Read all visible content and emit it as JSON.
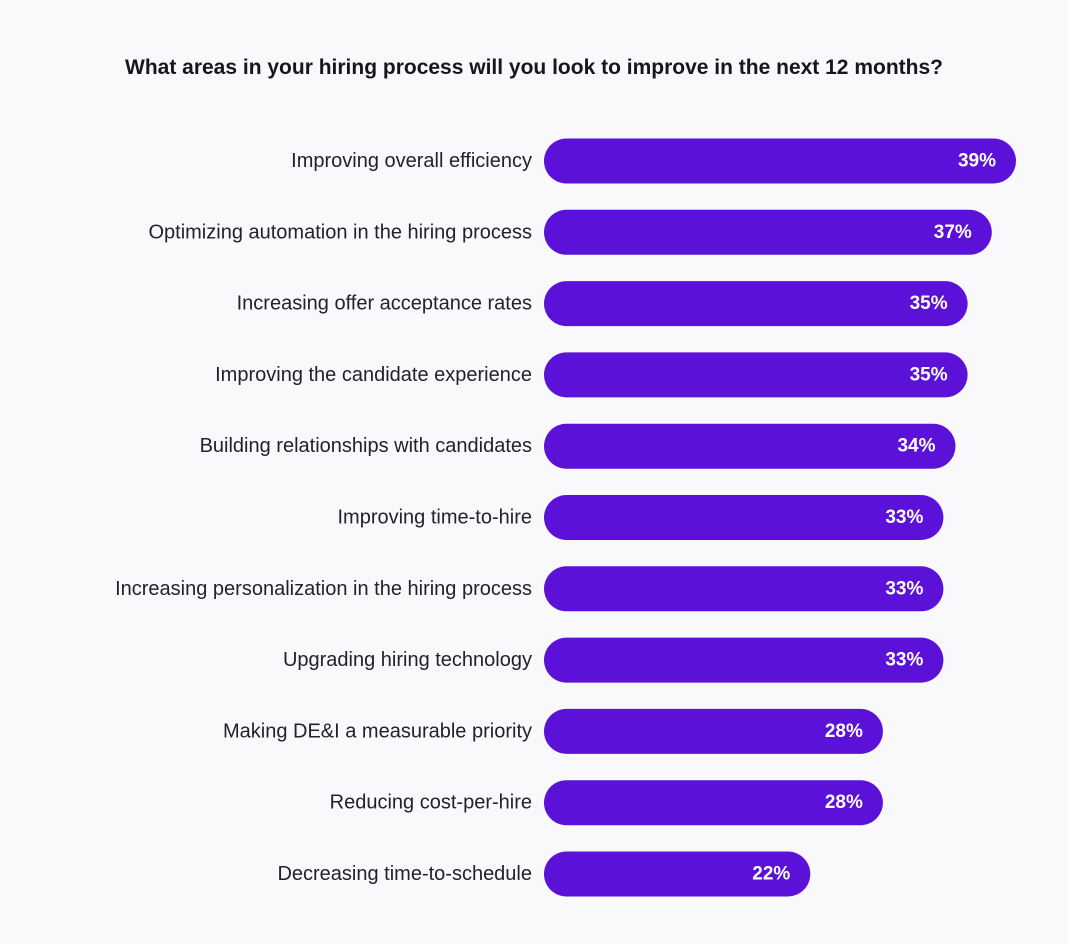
{
  "chart_data": {
    "type": "bar",
    "orientation": "horizontal",
    "title": "What areas in your hiring process will you look to improve in the next 12 months?",
    "categories": [
      "Improving overall efficiency",
      "Optimizing automation in the hiring process",
      "Increasing offer acceptance rates",
      "Improving the candidate experience",
      "Building relationships with candidates",
      "Improving time-to-hire",
      "Increasing personalization in the hiring process",
      "Upgrading hiring technology",
      "Making DE&I a measurable priority",
      "Reducing cost-per-hire",
      "Decreasing time-to-schedule"
    ],
    "values": [
      39,
      37,
      35,
      35,
      34,
      33,
      33,
      33,
      28,
      28,
      22
    ],
    "value_labels": [
      "39%",
      "37%",
      "35%",
      "35%",
      "34%",
      "33%",
      "33%",
      "33%",
      "28%",
      "28%",
      "22%"
    ],
    "unit": "%",
    "xlim": [
      0,
      39
    ],
    "grid": false,
    "legend": "none",
    "bar_color": "#5b11d8",
    "text_color": "#22222a"
  }
}
